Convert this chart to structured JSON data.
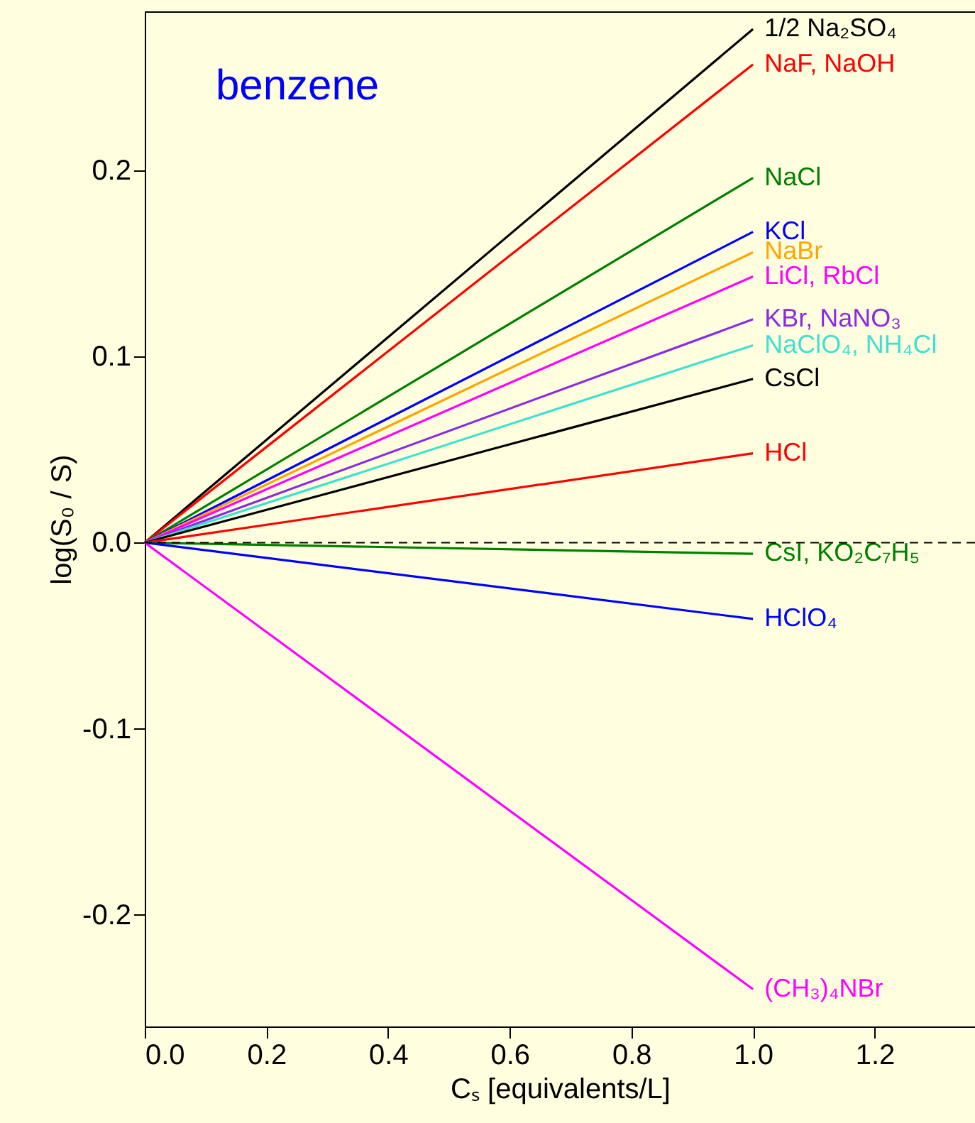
{
  "chart_data": {
    "type": "line",
    "title": "benzene",
    "xlabel": "Cₛ  [equivalents/L]",
    "ylabel": "log(S₀ / S)",
    "xlim": [
      0,
      1.365
    ],
    "ylim": [
      -0.26,
      0.2855
    ],
    "xticks": [
      {
        "value": 0,
        "label": "0.0"
      },
      {
        "value": 0.2,
        "label": "0.2"
      },
      {
        "value": 0.4,
        "label": "0.4"
      },
      {
        "value": 0.6,
        "label": "0.6"
      },
      {
        "value": 0.8,
        "label": "0.8"
      },
      {
        "value": 1,
        "label": "1.0"
      },
      {
        "value": 1.2,
        "label": "1.2"
      }
    ],
    "yticks": [
      {
        "value": -0.2,
        "label": "-0.2"
      },
      {
        "value": -0.1,
        "label": "-0.1"
      },
      {
        "value": 0,
        "label": "0.0"
      },
      {
        "value": 0.1,
        "label": "0.1"
      },
      {
        "value": 0.2,
        "label": "0.2"
      }
    ],
    "x": [
      0,
      1
    ],
    "grid": false,
    "marker": "none",
    "line_style": "solid",
    "ref_lines": [
      {
        "axis": "y",
        "value": 0,
        "color": "#000000",
        "line_style": "dashed"
      }
    ],
    "series": [
      {
        "name": "1/2 Na₂SO₄",
        "color": "#000000",
        "values": [
          0,
          0.276
        ]
      },
      {
        "name": "NaF, NaOH",
        "color": "#ff0000",
        "values": [
          0,
          0.257
        ]
      },
      {
        "name": "NaCl",
        "color": "#008000",
        "values": [
          0,
          0.196
        ]
      },
      {
        "name": "KCl",
        "color": "#0000ff",
        "values": [
          0,
          0.167
        ]
      },
      {
        "name": "NaBr",
        "color": "#ffa500",
        "values": [
          0,
          0.156
        ]
      },
      {
        "name": "LiCl, RbCl",
        "color": "#ff00ff",
        "values": [
          0,
          0.143
        ]
      },
      {
        "name": "KBr, NaNO₃",
        "color": "#8a2be2",
        "values": [
          0,
          0.12
        ]
      },
      {
        "name": "NaClO₄, NH₄Cl",
        "color": "#40e0d0",
        "values": [
          0,
          0.106
        ]
      },
      {
        "name": "CsCl",
        "color": "#000000",
        "values": [
          0,
          0.088
        ]
      },
      {
        "name": "HCl",
        "color": "#ff0000",
        "values": [
          0,
          0.048
        ]
      },
      {
        "name": "CsI, KO₂C₇H₅",
        "color": "#008000",
        "values": [
          0,
          -0.006
        ]
      },
      {
        "name": "HClO₄",
        "color": "#0000ff",
        "values": [
          0,
          -0.041
        ]
      },
      {
        "name": "(CH₃)₄NBr",
        "color": "#ff00ff",
        "values": [
          0,
          -0.24
        ]
      }
    ]
  }
}
